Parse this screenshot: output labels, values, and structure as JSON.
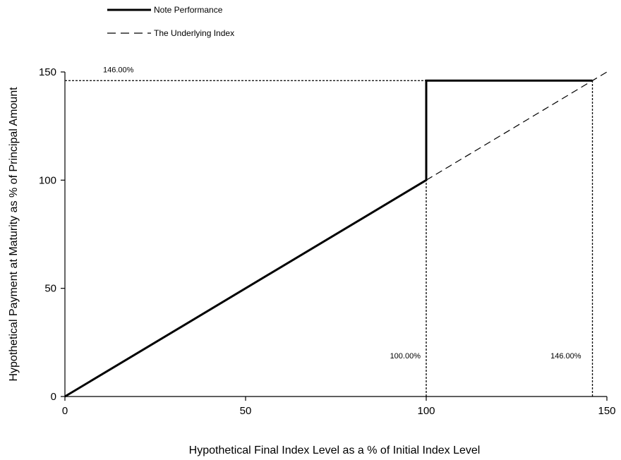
{
  "chart_data": {
    "type": "line",
    "title": "",
    "xlabel": "Hypothetical Final Index Level as a % of Initial Index Level",
    "ylabel": "Hypothetical Payment at Maturity as % of Principal Amount",
    "xlim": [
      0,
      150
    ],
    "ylim": [
      0,
      150
    ],
    "x_ticks": [
      0,
      50,
      100,
      150
    ],
    "y_ticks": [
      0,
      50,
      100,
      150
    ],
    "grid": false,
    "legend_position": "top-left",
    "series": [
      {
        "name": "Note Performance",
        "style": "solid",
        "color": "#000000",
        "points": [
          [
            0,
            0
          ],
          [
            100,
            100
          ],
          [
            100,
            146
          ],
          [
            146,
            146
          ]
        ]
      },
      {
        "name": "The Underlying Index",
        "style": "dashed",
        "color": "#000000",
        "points": [
          [
            100,
            100
          ],
          [
            150,
            150
          ]
        ]
      }
    ],
    "reference_lines": [
      {
        "style": "dotted",
        "points": [
          [
            0,
            146
          ],
          [
            146,
            146
          ]
        ]
      },
      {
        "style": "dotted",
        "points": [
          [
            100,
            0
          ],
          [
            100,
            146
          ]
        ]
      },
      {
        "style": "dotted",
        "points": [
          [
            146,
            0
          ],
          [
            146,
            146
          ]
        ]
      }
    ],
    "annotations": [
      {
        "text": "146.00%",
        "x": 12,
        "y": 146
      },
      {
        "text": "100.00%",
        "x": 100,
        "y": 12
      },
      {
        "text": "146.00%",
        "x": 146,
        "y": 12
      }
    ]
  }
}
